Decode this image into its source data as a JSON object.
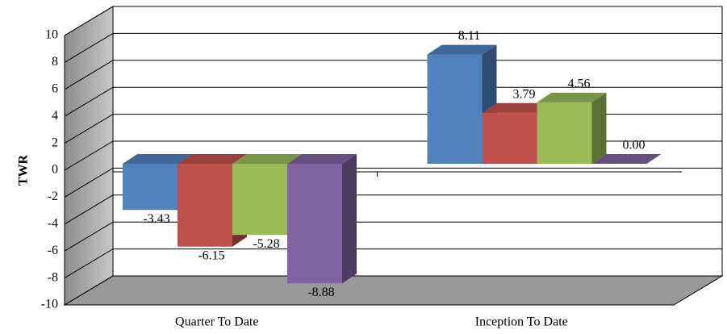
{
  "chart_data": {
    "type": "bar3d",
    "y_label": "TWR",
    "categories": [
      "Quarter To Date",
      "Inception To Date"
    ],
    "series": [
      {
        "color": "#4f81bd",
        "values": [
          -3.43,
          8.11
        ],
        "value_labels": [
          "-3.43",
          "8.11"
        ]
      },
      {
        "color": "#c0504d",
        "values": [
          -6.15,
          3.79
        ],
        "value_labels": [
          "-6.15",
          "3.79"
        ]
      },
      {
        "color": "#9bbb59",
        "values": [
          -5.28,
          4.56
        ],
        "value_labels": [
          "-5.28",
          "4.56"
        ]
      },
      {
        "color": "#8064a2",
        "values": [
          -8.88,
          0.0
        ],
        "value_labels": [
          "-8.88",
          "0.00"
        ]
      }
    ],
    "ylim": [
      -10,
      10
    ],
    "yticks": [
      -10,
      -8,
      -6,
      -4,
      -2,
      0,
      2,
      4,
      6,
      8,
      10
    ],
    "grid": true
  }
}
